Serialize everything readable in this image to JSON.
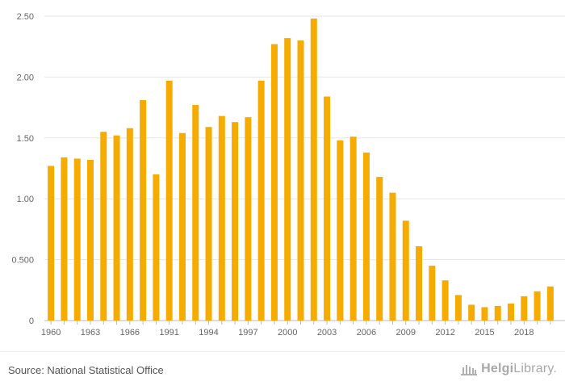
{
  "chart_data": {
    "type": "bar",
    "categories": [
      "1960",
      "1961",
      "1962",
      "1963",
      "1964",
      "1965",
      "1966",
      "1967",
      "1968",
      "1991",
      "1992",
      "1993",
      "1994",
      "1995",
      "1996",
      "1997",
      "1998",
      "1999",
      "2000",
      "2001",
      "2002",
      "2003",
      "2004",
      "2005",
      "2006",
      "2007",
      "2008",
      "2009",
      "2010",
      "2011",
      "2012",
      "2013",
      "2014",
      "2015",
      "2016",
      "2017",
      "2018",
      "2019",
      "2020"
    ],
    "values": [
      1.27,
      1.34,
      1.33,
      1.32,
      1.55,
      1.52,
      1.58,
      1.81,
      1.2,
      1.97,
      1.54,
      1.77,
      1.59,
      1.68,
      1.63,
      1.67,
      1.97,
      2.27,
      2.32,
      2.3,
      2.48,
      1.84,
      1.48,
      1.51,
      1.38,
      1.18,
      1.05,
      0.82,
      0.61,
      0.45,
      0.33,
      0.21,
      0.13,
      0.11,
      0.12,
      0.14,
      0.2,
      0.24,
      0.28
    ],
    "tick_labels_x": [
      "1960",
      "1963",
      "1966",
      "1991",
      "1994",
      "1997",
      "2000",
      "2003",
      "2006",
      "2009",
      "2012",
      "2015",
      "2018"
    ],
    "tick_labels_y": [
      "0",
      "0.500",
      "1.00",
      "1.50",
      "2.00",
      "2.50"
    ],
    "ylim": [
      0,
      2.5
    ],
    "grid": true,
    "legend": "none",
    "bar_color": "#f5ab00",
    "title": "",
    "xlabel": "",
    "ylabel": ""
  },
  "footer": {
    "source": "Source: National Statistical Office",
    "logo_bold": "Helgi",
    "logo_rest": "Library."
  }
}
